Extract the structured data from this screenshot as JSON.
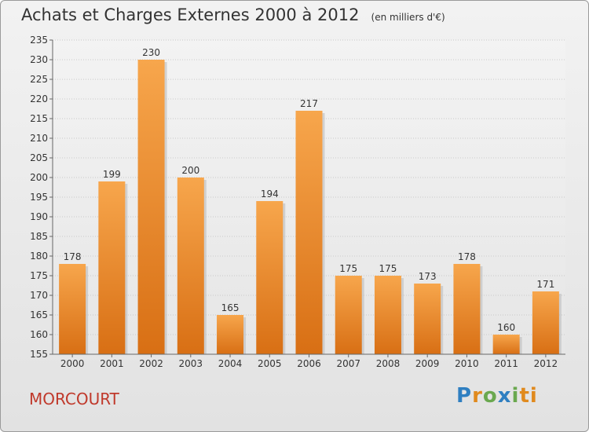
{
  "chart_data": {
    "type": "bar",
    "title": "Achats et Charges Externes 2000 à 2012",
    "unit_label": "(en milliers d'€)",
    "categories": [
      "2000",
      "2001",
      "2002",
      "2003",
      "2004",
      "2005",
      "2006",
      "2007",
      "2008",
      "2009",
      "2010",
      "2011",
      "2012"
    ],
    "values": [
      178,
      199,
      230,
      200,
      165,
      194,
      217,
      175,
      175,
      173,
      178,
      160,
      171
    ],
    "ylim": [
      155,
      235
    ],
    "yticks": [
      155,
      160,
      165,
      170,
      175,
      180,
      185,
      190,
      195,
      200,
      205,
      210,
      215,
      220,
      225,
      230,
      235
    ],
    "grid": true,
    "bar_color": "#f08a2c",
    "place": "MORCOURT"
  },
  "logo": {
    "text": "Proxiti",
    "letters": [
      "P",
      "r",
      "o",
      "x",
      "i",
      "t",
      "i"
    ]
  }
}
